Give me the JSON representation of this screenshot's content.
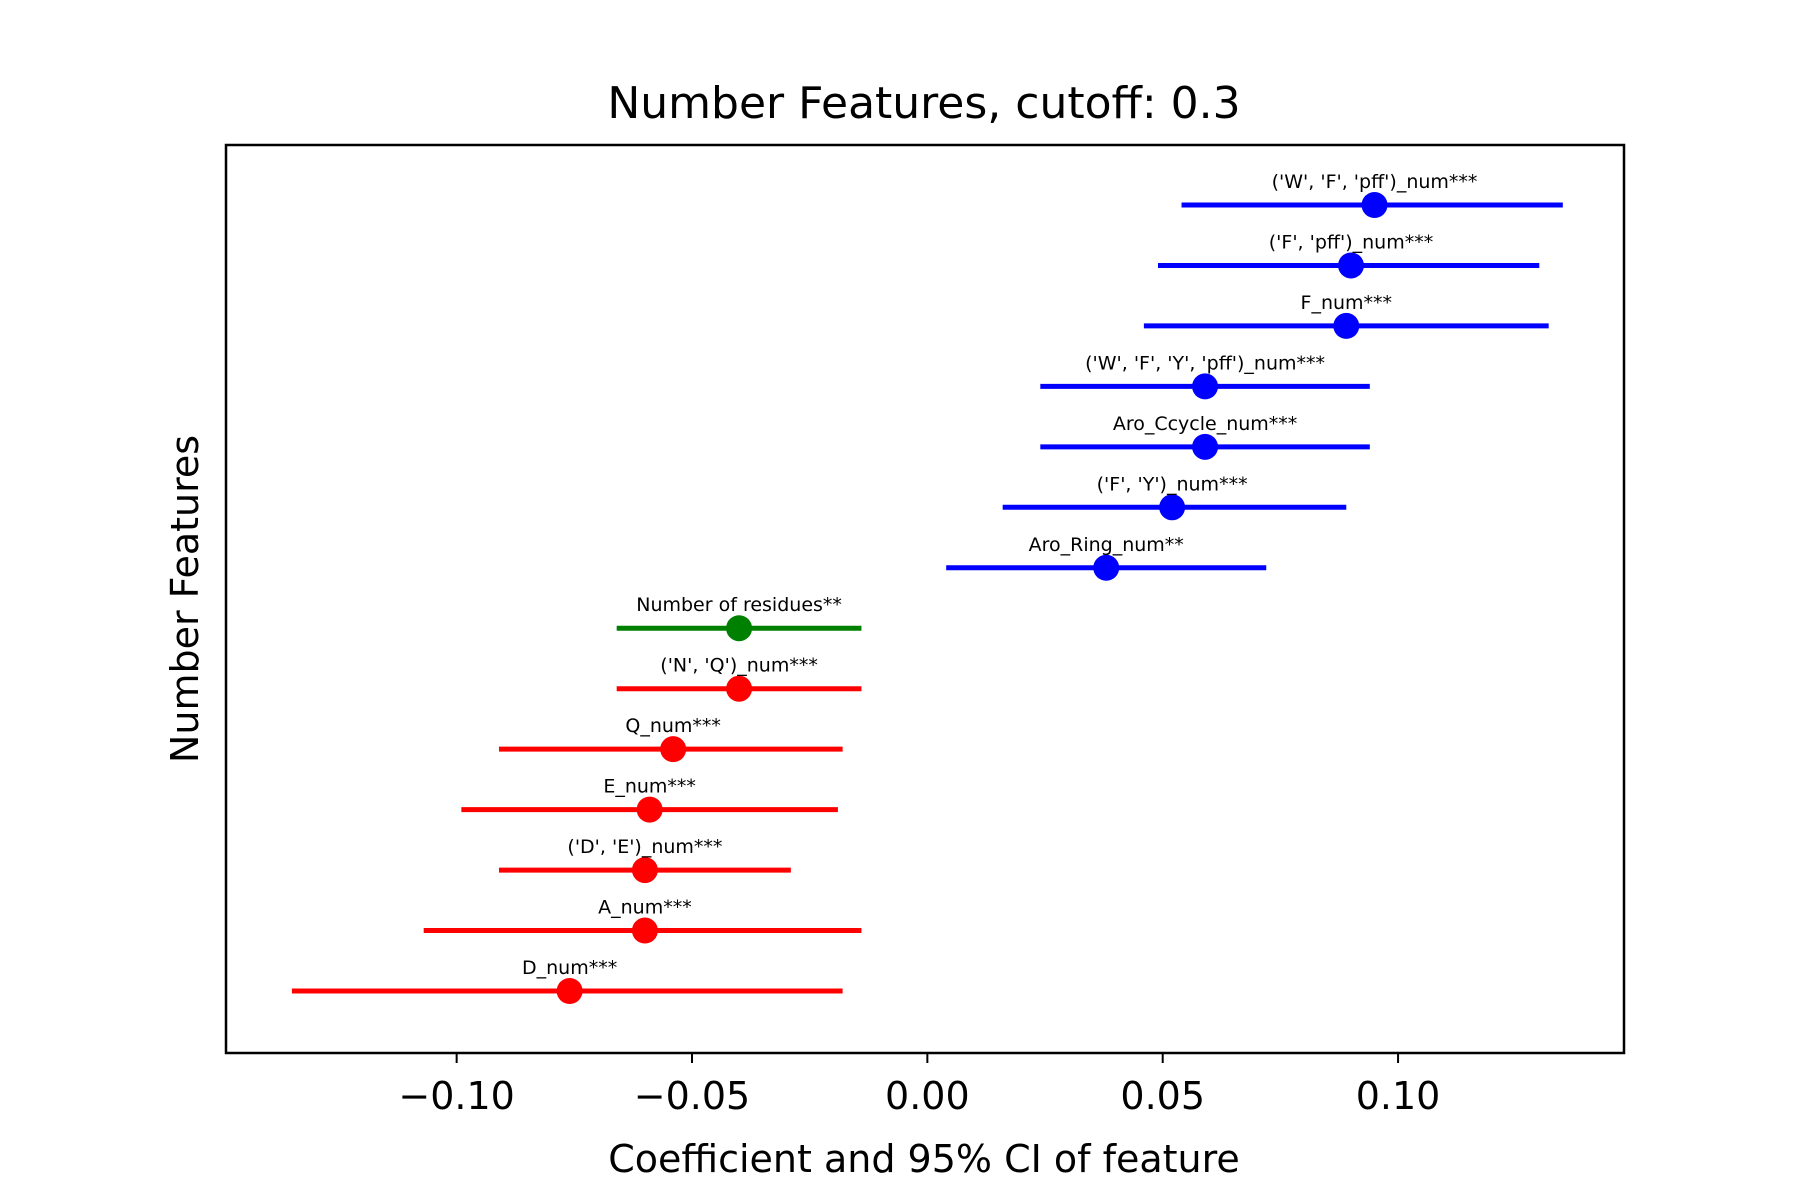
{
  "chart_data": {
    "type": "errorbar",
    "title": "Number Features, cutoff: 0.3",
    "xlabel": "Coefficient and 95% CI of feature",
    "ylabel": "Number Features",
    "xlim": [
      -0.149,
      0.148
    ],
    "xticks": [
      -0.1,
      -0.05,
      0.0,
      0.05,
      0.1
    ],
    "xtick_labels": [
      "−0.10",
      "−0.05",
      "0.00",
      "0.05",
      "0.10"
    ],
    "grid": false,
    "colors": {
      "positive": "#0000ff",
      "neutral": "#008000",
      "negative": "#ff0000"
    },
    "features": [
      {
        "label": "('W', 'F', 'pff')_num***",
        "coef": 0.095,
        "ci": [
          0.054,
          0.135
        ],
        "color": "positive"
      },
      {
        "label": "('F', 'pff')_num***",
        "coef": 0.09,
        "ci": [
          0.049,
          0.13
        ],
        "color": "positive"
      },
      {
        "label": "F_num***",
        "coef": 0.089,
        "ci": [
          0.046,
          0.132
        ],
        "color": "positive"
      },
      {
        "label": "('W', 'F', 'Y', 'pff')_num***",
        "coef": 0.059,
        "ci": [
          0.024,
          0.094
        ],
        "color": "positive"
      },
      {
        "label": "Aro_Ccycle_num***",
        "coef": 0.059,
        "ci": [
          0.024,
          0.094
        ],
        "color": "positive"
      },
      {
        "label": "('F', 'Y')_num***",
        "coef": 0.052,
        "ci": [
          0.016,
          0.089
        ],
        "color": "positive"
      },
      {
        "label": "Aro_Ring_num**",
        "coef": 0.038,
        "ci": [
          0.004,
          0.072
        ],
        "color": "positive"
      },
      {
        "label": "Number of residues**",
        "coef": -0.04,
        "ci": [
          -0.066,
          -0.014
        ],
        "color": "neutral"
      },
      {
        "label": "('N', 'Q')_num***",
        "coef": -0.04,
        "ci": [
          -0.066,
          -0.014
        ],
        "color": "negative"
      },
      {
        "label": "Q_num***",
        "coef": -0.054,
        "ci": [
          -0.091,
          -0.018
        ],
        "color": "negative"
      },
      {
        "label": "E_num***",
        "coef": -0.059,
        "ci": [
          -0.099,
          -0.019
        ],
        "color": "negative"
      },
      {
        "label": "('D', 'E')_num***",
        "coef": -0.06,
        "ci": [
          -0.091,
          -0.029
        ],
        "color": "negative"
      },
      {
        "label": "A_num***",
        "coef": -0.06,
        "ci": [
          -0.107,
          -0.014
        ],
        "color": "negative"
      },
      {
        "label": "D_num***",
        "coef": -0.076,
        "ci": [
          -0.135,
          -0.018
        ],
        "color": "negative"
      }
    ]
  }
}
